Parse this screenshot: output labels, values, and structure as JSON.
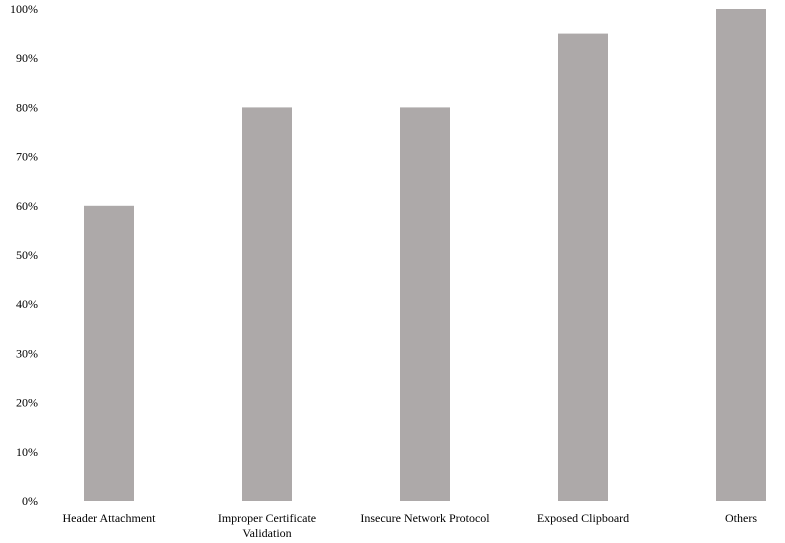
{
  "chart_data": {
    "type": "bar",
    "categories": [
      [
        "Header Attachment"
      ],
      [
        "Improper Certificate",
        "Validation"
      ],
      [
        "Insecure Network Protocol"
      ],
      [
        "Exposed Clipboard"
      ],
      [
        "Others"
      ]
    ],
    "values": [
      60,
      80,
      80,
      95,
      100
    ],
    "ylim": [
      0,
      100
    ],
    "yticks": [
      0,
      10,
      20,
      30,
      40,
      50,
      60,
      70,
      80,
      90,
      100
    ],
    "ytick_labels": [
      "0%",
      "10%",
      "20%",
      "30%",
      "40%",
      "50%",
      "60%",
      "70%",
      "80%",
      "90%",
      "100%"
    ],
    "title": "",
    "xlabel": "",
    "ylabel": "",
    "grid": false,
    "legend": "none",
    "bar_color": "#ada9a9"
  }
}
